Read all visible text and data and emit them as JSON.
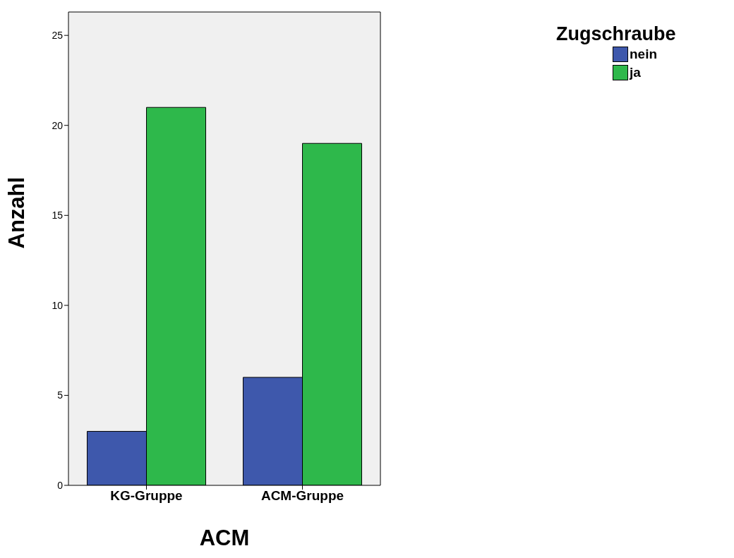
{
  "chart_data": {
    "type": "bar",
    "xlabel": "ACM",
    "ylabel": "Anzahl",
    "legend_title": "Zugschraube",
    "categories": [
      "KG-Gruppe",
      "ACM-Gruppe"
    ],
    "series": [
      {
        "name": "nein",
        "color": "#3e58ac",
        "values": [
          3,
          6
        ]
      },
      {
        "name": "ja",
        "color": "#2eb84b",
        "values": [
          21,
          19
        ]
      }
    ],
    "ylim": [
      0,
      26.3
    ],
    "yticks": [
      0,
      5,
      10,
      15,
      20,
      25
    ],
    "legend": "top right"
  }
}
